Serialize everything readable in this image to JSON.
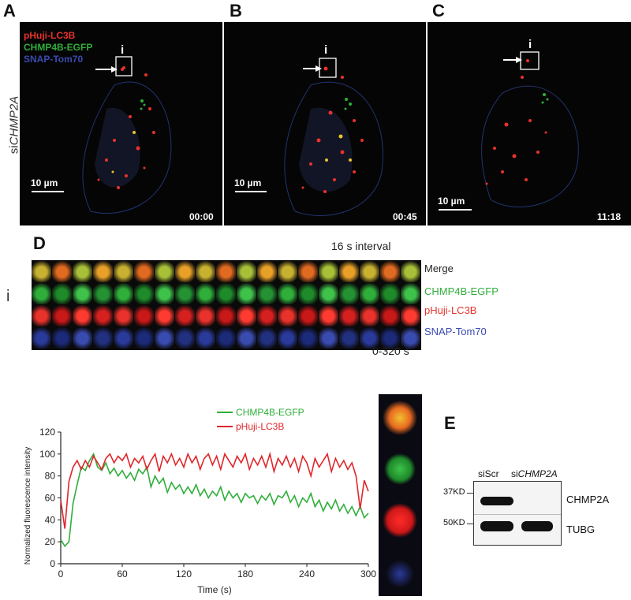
{
  "panels": {
    "A": {
      "letter": "A",
      "time": "00:00",
      "scalebar": "10 µm"
    },
    "B": {
      "letter": "B",
      "time": "00:45",
      "scalebar": "10 µm"
    },
    "C": {
      "letter": "C",
      "time": "11:18",
      "scalebar": "10 µm"
    }
  },
  "roi_label": "i",
  "condition_label": {
    "prefix": "si",
    "gene": "CHMP2A"
  },
  "channel_legend": [
    {
      "label": "pHuji-LC3B",
      "color": "#e8322b"
    },
    {
      "label": "CHMP4B-EGFP",
      "color": "#2fae3a"
    },
    {
      "label": "SNAP-Tom70",
      "color": "#3a4bb0"
    }
  ],
  "panel_D": {
    "letter": "D",
    "interval": "16 s interval",
    "time_range": "0-320 s",
    "row_label": "i",
    "rows": [
      {
        "label": "Merge",
        "color": "#222222"
      },
      {
        "label": "CHMP4B-EGFP",
        "color": "#2fae3a"
      },
      {
        "label": "pHuji-LC3B",
        "color": "#e8322b"
      },
      {
        "label": "SNAP-Tom70",
        "color": "#3a4bb0"
      }
    ]
  },
  "chart_data": {
    "type": "line",
    "xlabel": "Time (s)",
    "ylabel": "Normalized fluorescence intensity",
    "xlim": [
      0,
      300
    ],
    "ylim": [
      0,
      120
    ],
    "xticks": [
      0,
      60,
      120,
      180,
      240,
      300
    ],
    "yticks": [
      0,
      20,
      40,
      60,
      80,
      100,
      120
    ],
    "legend_position": "top-center",
    "series": [
      {
        "name": "CHMP4B-EGFP",
        "color": "#2fae3a",
        "x": [
          0,
          4,
          8,
          12,
          16,
          20,
          24,
          28,
          32,
          36,
          40,
          44,
          48,
          52,
          56,
          60,
          64,
          68,
          72,
          76,
          80,
          84,
          88,
          92,
          96,
          100,
          104,
          108,
          112,
          116,
          120,
          124,
          128,
          132,
          136,
          140,
          144,
          148,
          152,
          156,
          160,
          164,
          168,
          172,
          176,
          180,
          184,
          188,
          192,
          196,
          200,
          204,
          208,
          212,
          216,
          220,
          224,
          228,
          232,
          236,
          240,
          244,
          248,
          252,
          256,
          260,
          264,
          268,
          272,
          276,
          280,
          284,
          288,
          292,
          296,
          300
        ],
        "y": [
          22,
          16,
          20,
          55,
          72,
          88,
          85,
          94,
          100,
          88,
          85,
          92,
          82,
          87,
          80,
          85,
          78,
          83,
          76,
          86,
          82,
          88,
          70,
          80,
          73,
          78,
          65,
          74,
          68,
          72,
          64,
          70,
          64,
          72,
          62,
          68,
          60,
          66,
          62,
          70,
          58,
          66,
          60,
          64,
          56,
          64,
          60,
          62,
          55,
          62,
          58,
          64,
          54,
          62,
          60,
          66,
          56,
          62,
          52,
          60,
          56,
          64,
          52,
          58,
          48,
          56,
          50,
          58,
          48,
          54,
          46,
          52,
          44,
          52,
          42,
          46
        ]
      },
      {
        "name": "pHuji-LC3B",
        "color": "#e0262a",
        "x": [
          0,
          4,
          8,
          12,
          16,
          20,
          24,
          28,
          32,
          36,
          40,
          44,
          48,
          52,
          56,
          60,
          64,
          68,
          72,
          76,
          80,
          84,
          88,
          92,
          96,
          100,
          104,
          108,
          112,
          116,
          120,
          124,
          128,
          132,
          136,
          140,
          144,
          148,
          152,
          156,
          160,
          164,
          168,
          172,
          176,
          180,
          184,
          188,
          192,
          196,
          200,
          204,
          208,
          212,
          216,
          220,
          224,
          228,
          232,
          236,
          240,
          244,
          248,
          252,
          256,
          260,
          264,
          268,
          272,
          276,
          280,
          284,
          288,
          292,
          296,
          300
        ],
        "y": [
          58,
          32,
          75,
          88,
          94,
          86,
          94,
          88,
          98,
          92,
          86,
          96,
          100,
          92,
          98,
          94,
          100,
          88,
          96,
          92,
          98,
          86,
          94,
          100,
          84,
          98,
          92,
          100,
          90,
          96,
          88,
          100,
          92,
          98,
          86,
          96,
          100,
          90,
          98,
          86,
          100,
          94,
          88,
          98,
          92,
          100,
          86,
          96,
          90,
          98,
          88,
          100,
          84,
          96,
          90,
          98,
          88,
          96,
          84,
          98,
          92,
          80,
          96,
          88,
          94,
          100,
          84,
          96,
          88,
          94,
          86,
          92,
          80,
          50,
          76,
          66
        ]
      }
    ]
  },
  "panel_E": {
    "letter": "E",
    "lane_labels": [
      {
        "prefix": "",
        "gene": "siScr"
      },
      {
        "prefix": "si",
        "gene": "CHMP2A"
      }
    ],
    "markers": [
      "37KD",
      "50KD"
    ],
    "bands": [
      "CHMP2A",
      "TUBG"
    ]
  }
}
